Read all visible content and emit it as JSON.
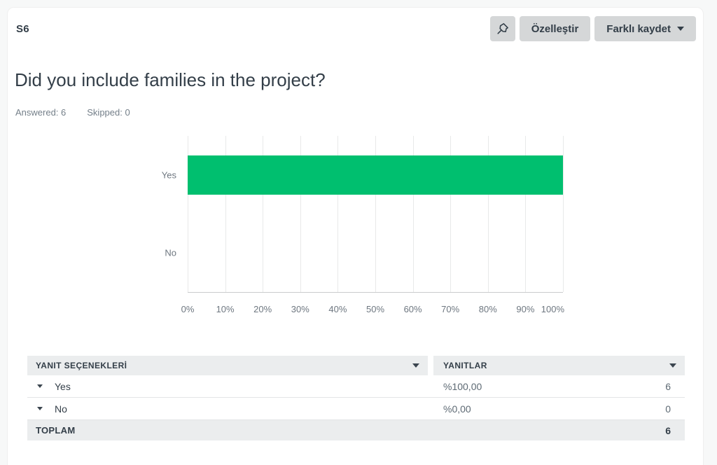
{
  "header": {
    "question_number": "S6"
  },
  "toolbar": {
    "customize_label": "Özelleştir",
    "save_as_label": "Farklı kaydet"
  },
  "question": {
    "title": "Did you include families in the project?",
    "answered": "Answered: 6",
    "skipped": "Skipped: 0"
  },
  "chart_data": {
    "type": "bar",
    "orientation": "horizontal",
    "categories": [
      "Yes",
      "No"
    ],
    "values": [
      100,
      0
    ],
    "value_unit": "%",
    "xlim": [
      0,
      100
    ],
    "x_tick_labels": [
      "0%",
      "10%",
      "20%",
      "30%",
      "40%",
      "50%",
      "60%",
      "70%",
      "80%",
      "90%",
      "100%"
    ],
    "grid": true,
    "legend": false,
    "bar_color": "#00BF6F",
    "title": "",
    "xlabel": "",
    "ylabel": ""
  },
  "table": {
    "headers": [
      {
        "label": "YANIT SEÇENEKLERİ"
      },
      {
        "label": "YANITLAR"
      }
    ],
    "rows": [
      {
        "option": "Yes",
        "percent": "%100,00",
        "count": "6"
      },
      {
        "option": "No",
        "percent": "%0,00",
        "count": "0"
      }
    ],
    "total_label": "TOPLAM",
    "total_value": "6"
  },
  "colors": {
    "accent_green": "#00BF6F",
    "text_dark": "#333E48",
    "text_gray": "#6E7780",
    "button_bg": "#D5D7D8",
    "table_header_bg": "#EBEDEE",
    "page_bg": "#F7F8F8"
  }
}
